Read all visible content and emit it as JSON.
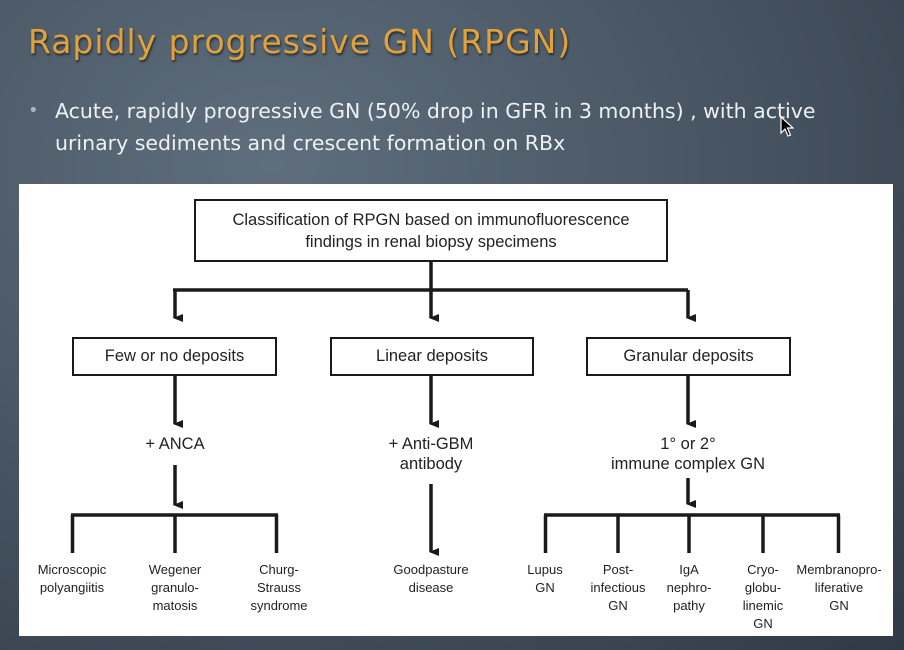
{
  "slide": {
    "title": "Rapidly progressive GN (RPGN)",
    "bullet": "Acute, rapidly progressive GN (50% drop in GFR in 3 months) , with active urinary sediments and crescent formation on RBx"
  },
  "diagram": {
    "root": {
      "line1": "Classification of RPGN based on immunofluorescence",
      "line2": "findings in renal biopsy specimens"
    },
    "categories": [
      {
        "label": "Few or no deposits",
        "marker": [
          "+ ANCA"
        ],
        "diseases": [
          [
            "Microscopic",
            "polyangiitis"
          ],
          [
            "Wegener",
            "granulo-",
            "matosis"
          ],
          [
            "Churg-",
            "Strauss",
            "syndrome"
          ]
        ]
      },
      {
        "label": "Linear deposits",
        "marker": [
          "+ Anti-GBM",
          "antibody"
        ],
        "diseases": [
          [
            "Goodpasture",
            "disease"
          ]
        ]
      },
      {
        "label": "Granular deposits",
        "marker": [
          "1° or 2°",
          "immune complex GN"
        ],
        "diseases": [
          [
            "Lupus",
            "GN"
          ],
          [
            "Post-",
            "infectious",
            "GN"
          ],
          [
            "IgA",
            "nephro-",
            "pathy"
          ],
          [
            "Cryo-",
            "globu-",
            "linemic",
            "GN"
          ],
          [
            "Membranopro-",
            "liferative",
            "GN"
          ]
        ]
      }
    ]
  }
}
